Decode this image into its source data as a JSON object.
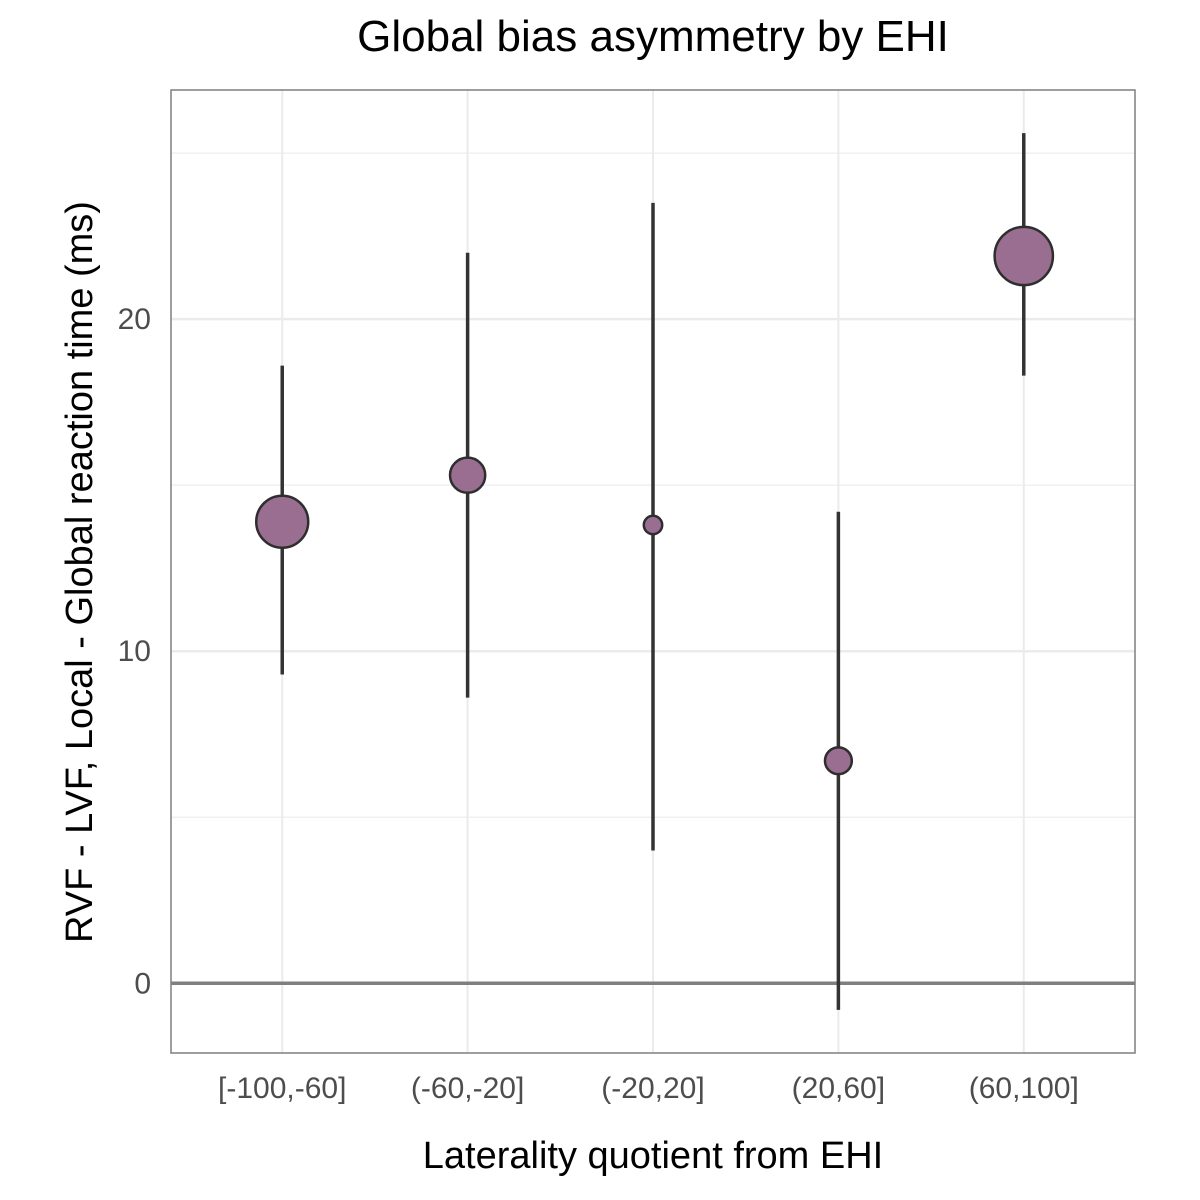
{
  "chart_data": {
    "type": "scatter",
    "title": "Global bias asymmetry by EHI",
    "xlabel": "Laterality quotient from EHI",
    "ylabel": "RVF - LVF, Local - Global reaction time (ms)",
    "categories": [
      "[-100,-60]",
      "(-60,-20]",
      "(-20,20]",
      "(20,60]",
      "(60,100]"
    ],
    "ylim": [
      -2.1,
      26.9
    ],
    "yticks": [
      0,
      10,
      20
    ],
    "grid": true,
    "reference_line": 0,
    "marker_color": "#9A6E90",
    "points": [
      {
        "category": "[-100,-60]",
        "y": 13.9,
        "lower": 9.3,
        "upper": 18.6,
        "relative_size": 1.0
      },
      {
        "category": "(-60,-20]",
        "y": 15.3,
        "lower": 8.6,
        "upper": 22.0,
        "relative_size": 0.6
      },
      {
        "category": "(-20,20]",
        "y": 13.8,
        "lower": 4.0,
        "upper": 23.5,
        "relative_size": 0.2
      },
      {
        "category": "(20,60]",
        "y": 6.7,
        "lower": -0.8,
        "upper": 14.2,
        "relative_size": 0.4
      },
      {
        "category": "(60,100]",
        "y": 21.9,
        "lower": 18.3,
        "upper": 25.6,
        "relative_size": 1.15
      }
    ]
  }
}
